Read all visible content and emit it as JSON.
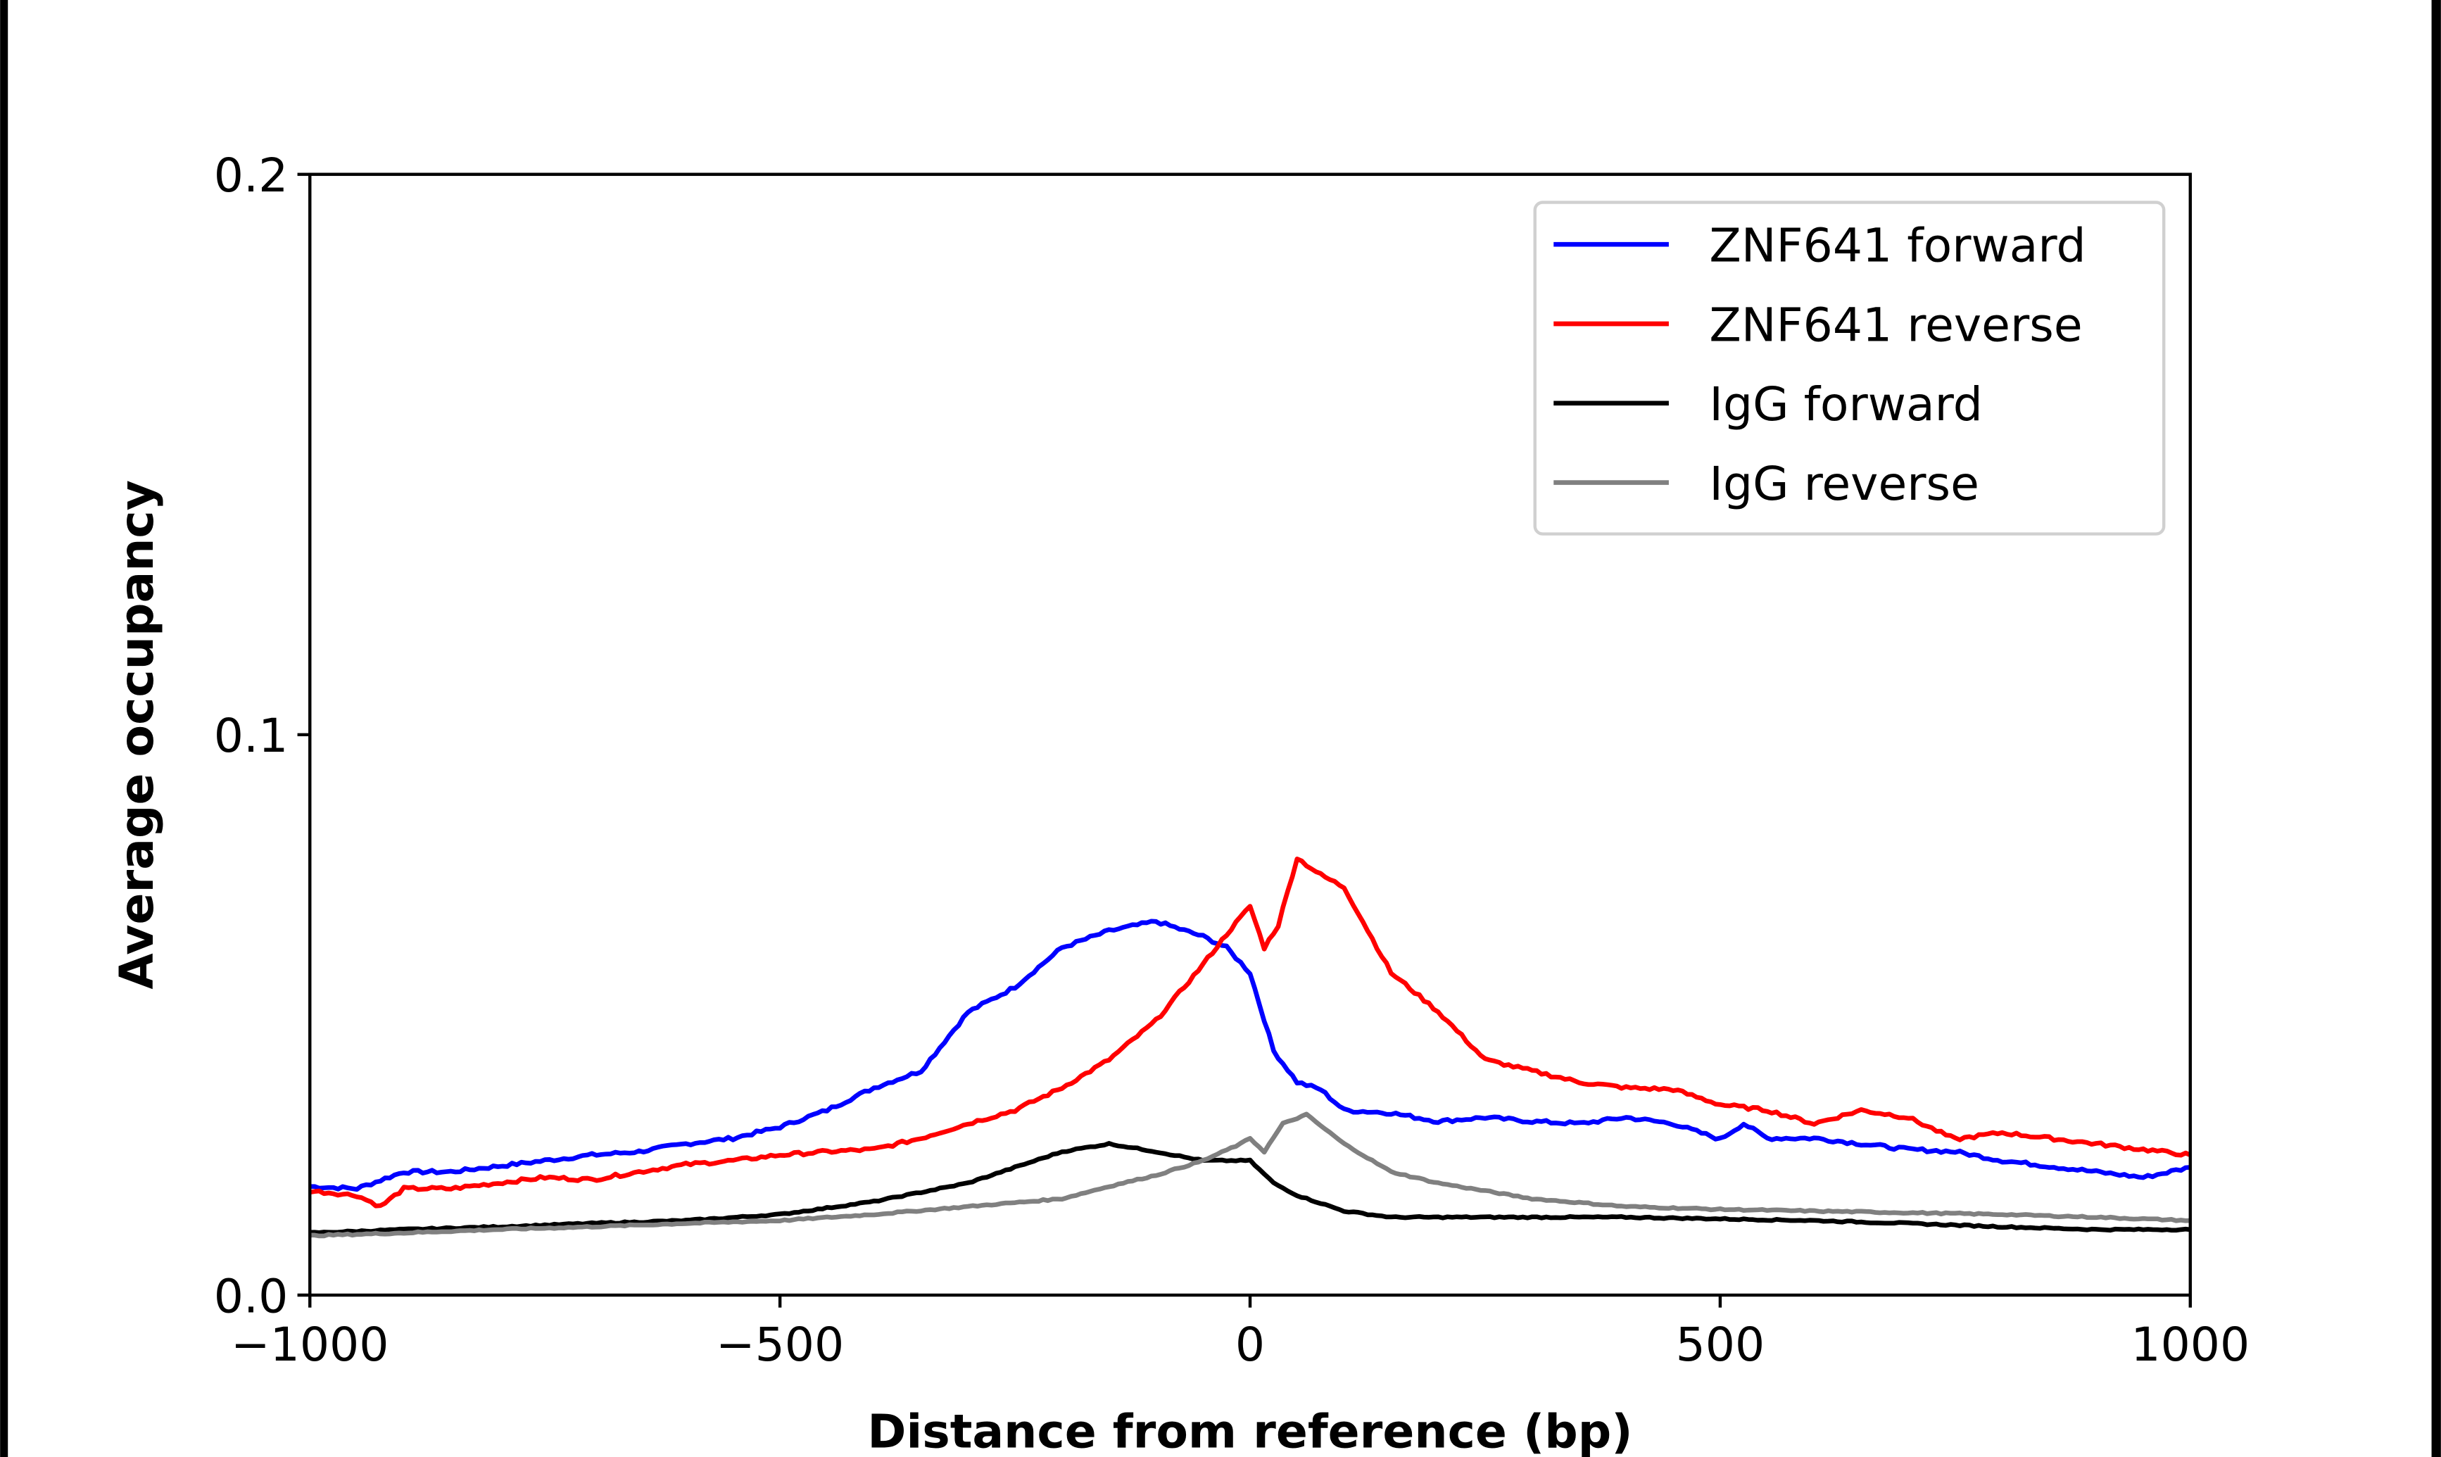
{
  "chart_data": {
    "type": "line",
    "title": "",
    "xlabel": "Distance from reference (bp)",
    "ylabel": "Average occupancy",
    "xlim": [
      -1000,
      1000
    ],
    "ylim": [
      0,
      0.2
    ],
    "xticks": [
      -1000,
      -500,
      0,
      500,
      1000
    ],
    "xtick_labels": [
      "−1000",
      "−500",
      "0",
      "500",
      "1000"
    ],
    "yticks": [
      0.0,
      0.1,
      0.2
    ],
    "ytick_labels": [
      "0.0",
      "0.1",
      "0.2"
    ],
    "grid": false,
    "legend_position": "top-right",
    "series": [
      {
        "name": "ZNF641 forward",
        "color": "#0000ff",
        "x": [
          -1000,
          -950,
          -900,
          -850,
          -800,
          -750,
          -700,
          -650,
          -600,
          -550,
          -500,
          -450,
          -400,
          -350,
          -300,
          -250,
          -200,
          -150,
          -100,
          -50,
          -25,
          0,
          25,
          50,
          75,
          100,
          150,
          200,
          250,
          300,
          350,
          400,
          450,
          500,
          525,
          550,
          600,
          650,
          700,
          750,
          800,
          850,
          900,
          950,
          1000
        ],
        "y": [
          0.0194,
          0.019,
          0.022,
          0.022,
          0.023,
          0.024,
          0.025,
          0.0256,
          0.027,
          0.028,
          0.03,
          0.033,
          0.037,
          0.04,
          0.0505,
          0.055,
          0.062,
          0.065,
          0.0667,
          0.064,
          0.062,
          0.0575,
          0.0436,
          0.038,
          0.0367,
          0.033,
          0.0325,
          0.031,
          0.0317,
          0.031,
          0.0306,
          0.0317,
          0.0306,
          0.0278,
          0.0306,
          0.028,
          0.028,
          0.027,
          0.026,
          0.0256,
          0.024,
          0.023,
          0.022,
          0.021,
          0.0228
        ]
      },
      {
        "name": "ZNF641 reverse",
        "color": "#ff0000",
        "x": [
          -1000,
          -950,
          -925,
          -900,
          -850,
          -800,
          -750,
          -700,
          -650,
          -600,
          -550,
          -500,
          -450,
          -400,
          -350,
          -300,
          -250,
          -200,
          -150,
          -100,
          -50,
          -25,
          0,
          15,
          30,
          50,
          75,
          100,
          150,
          200,
          250,
          300,
          350,
          400,
          450,
          500,
          550,
          600,
          650,
          700,
          750,
          800,
          850,
          900,
          950,
          1000
        ],
        "y": [
          0.0186,
          0.0178,
          0.0158,
          0.019,
          0.019,
          0.02,
          0.021,
          0.0206,
          0.022,
          0.0233,
          0.024,
          0.025,
          0.0256,
          0.026,
          0.028,
          0.0306,
          0.033,
          0.037,
          0.042,
          0.049,
          0.059,
          0.0644,
          0.0694,
          0.062,
          0.066,
          0.078,
          0.075,
          0.0728,
          0.0575,
          0.0506,
          0.042,
          0.04,
          0.038,
          0.037,
          0.0367,
          0.034,
          0.033,
          0.0306,
          0.033,
          0.0317,
          0.0278,
          0.029,
          0.028,
          0.027,
          0.026,
          0.025
        ]
      },
      {
        "name": "IgG forward",
        "color": "#000000",
        "x": [
          -1000,
          -900,
          -800,
          -700,
          -600,
          -500,
          -400,
          -300,
          -250,
          -200,
          -150,
          -100,
          -50,
          0,
          25,
          50,
          100,
          150,
          200,
          300,
          400,
          500,
          600,
          700,
          800,
          900,
          1000
        ],
        "y": [
          0.0111,
          0.0117,
          0.0122,
          0.0128,
          0.0133,
          0.0144,
          0.0167,
          0.02,
          0.0228,
          0.0256,
          0.027,
          0.0256,
          0.024,
          0.024,
          0.02,
          0.0178,
          0.015,
          0.0139,
          0.0139,
          0.0139,
          0.0139,
          0.0136,
          0.0133,
          0.0128,
          0.0122,
          0.0117,
          0.0117
        ]
      },
      {
        "name": "IgG reverse",
        "color": "#808080",
        "x": [
          -1000,
          -900,
          -800,
          -700,
          -600,
          -500,
          -400,
          -300,
          -200,
          -150,
          -100,
          -50,
          -10,
          0,
          15,
          35,
          60,
          100,
          150,
          200,
          300,
          400,
          500,
          600,
          700,
          800,
          900,
          1000
        ],
        "y": [
          0.0106,
          0.0111,
          0.0117,
          0.0122,
          0.0128,
          0.0133,
          0.0144,
          0.0158,
          0.0172,
          0.0194,
          0.0214,
          0.024,
          0.027,
          0.028,
          0.0256,
          0.0306,
          0.0322,
          0.027,
          0.022,
          0.02,
          0.0172,
          0.0158,
          0.0153,
          0.015,
          0.0147,
          0.0144,
          0.0139,
          0.0133
        ]
      }
    ]
  }
}
